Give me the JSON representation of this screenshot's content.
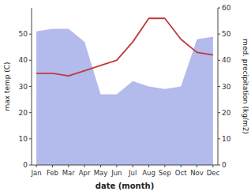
{
  "chart_data": {
    "type": "line",
    "categories": [
      "Jan",
      "Feb",
      "Mar",
      "Apr",
      "May",
      "Jun",
      "Jul",
      "Aug",
      "Sep",
      "Oct",
      "Nov",
      "Dec"
    ],
    "series": [
      {
        "type": "area",
        "axis": "y2",
        "color": "#b3baec",
        "values": [
          51,
          52,
          52,
          47,
          27,
          27,
          32,
          30,
          29,
          30,
          48,
          49
        ]
      },
      {
        "type": "line",
        "color": "#c0393b",
        "values": [
          35,
          35,
          34,
          36,
          38,
          40,
          47,
          56,
          56,
          48,
          43,
          42
        ]
      }
    ],
    "xlabel": "date (month)",
    "ylabel": "max temp (C)",
    "y2label": "med. precipitation (kg/m2)",
    "ylim": [
      0,
      60
    ],
    "yticks": [
      0,
      10,
      20,
      30,
      40,
      50
    ],
    "y2lim": [
      0,
      60
    ],
    "y2ticks": [
      0,
      10,
      20,
      30,
      40,
      50,
      60
    ],
    "grid": false
  }
}
